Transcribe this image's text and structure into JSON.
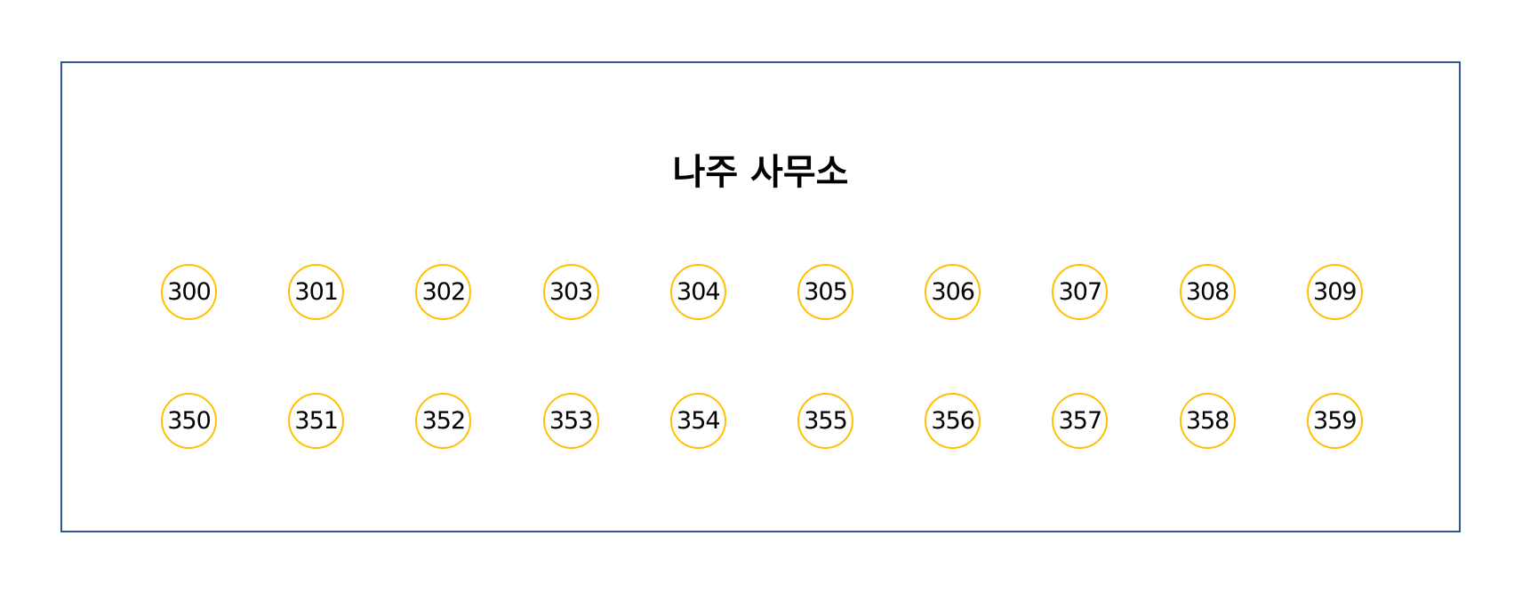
{
  "office": {
    "title": "나주 사무소",
    "border_color": "#2f5597",
    "seat_border_color": "#ffc000",
    "rows": [
      [
        "300",
        "301",
        "302",
        "303",
        "304",
        "305",
        "306",
        "307",
        "308",
        "309"
      ],
      [
        "350",
        "351",
        "352",
        "353",
        "354",
        "355",
        "356",
        "357",
        "358",
        "359"
      ]
    ]
  }
}
